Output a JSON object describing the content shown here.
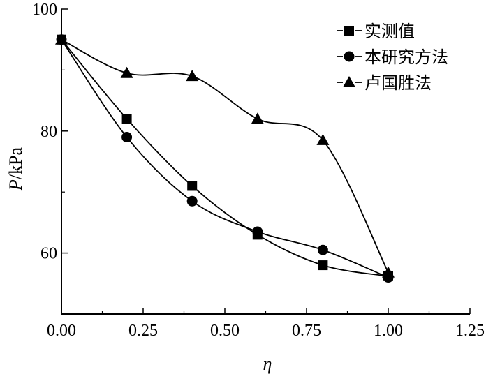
{
  "chart_data": {
    "type": "line",
    "x": [
      0.0,
      0.2,
      0.4,
      0.6,
      0.8,
      1.0
    ],
    "series": [
      {
        "name": "实测值",
        "marker": "square",
        "values": [
          95,
          82,
          71,
          63,
          58,
          56.2
        ]
      },
      {
        "name": "本研究方法",
        "marker": "circle",
        "values": [
          95,
          79,
          68.5,
          63.5,
          60.5,
          56
        ]
      },
      {
        "name": "卢国胜法",
        "marker": "triangle",
        "values": [
          95,
          89.5,
          89,
          82,
          78.5,
          56.8
        ]
      }
    ],
    "xlabel": "η",
    "ylabel_italic": "P",
    "ylabel_unit": "/kPa",
    "xlim": [
      0.0,
      1.25
    ],
    "ylim": [
      50,
      100
    ],
    "x_ticks": [
      {
        "value": 0.0,
        "label": "0.00"
      },
      {
        "value": 0.25,
        "label": "0.25"
      },
      {
        "value": 0.5,
        "label": "0.50"
      },
      {
        "value": 0.75,
        "label": "0.75"
      },
      {
        "value": 1.0,
        "label": "1.00"
      },
      {
        "value": 1.25,
        "label": "1.25"
      }
    ],
    "y_ticks": [
      {
        "value": 60,
        "label": "60"
      },
      {
        "value": 80,
        "label": "80"
      },
      {
        "value": 100,
        "label": "100"
      }
    ],
    "y_minor_ticks": [
      70,
      90
    ],
    "x_minor_ticks": [
      0.125,
      0.375,
      0.625,
      0.875,
      1.125
    ],
    "grid": false,
    "legend_position": "top-right",
    "color": "#000000"
  }
}
